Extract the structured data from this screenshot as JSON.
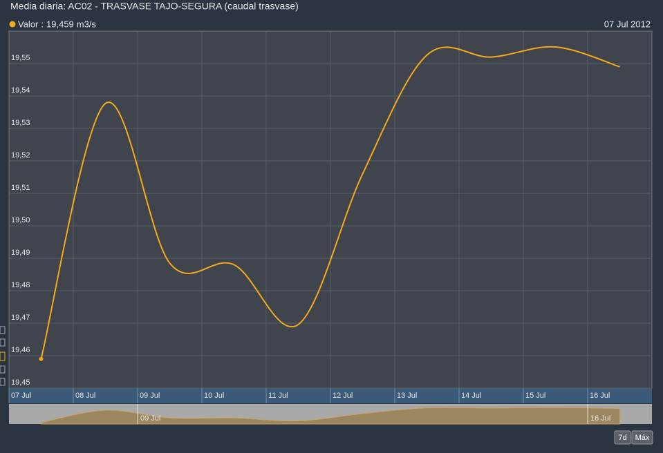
{
  "chart_data": {
    "type": "line",
    "title": "Media diaria: AC02 - TRASVASE TAJO-SEGURA (caudal trasvase)",
    "legend_separator": ":",
    "unit": "m3/s",
    "legend_date": "07 Jul 2012",
    "categories": [
      "07 Jul",
      "08 Jul",
      "09 Jul",
      "10 Jul",
      "11 Jul",
      "12 Jul",
      "13 Jul",
      "14 Jul",
      "15 Jul",
      "16 Jul"
    ],
    "series": [
      {
        "name": "Valor",
        "color": "#f5aa1c",
        "values": [
          19.459,
          19.5377,
          19.4885,
          19.488,
          19.4696,
          19.516,
          19.5526,
          19.552,
          19.5551,
          19.549
        ],
        "value_labels": [
          "19,459",
          null,
          null,
          null,
          null,
          null,
          null,
          null,
          null,
          null
        ]
      }
    ],
    "ylim": [
      19.45,
      19.56
    ],
    "yticks": [
      {
        "value": 19.45,
        "label": "19,45"
      },
      {
        "value": 19.46,
        "label": "19,46"
      },
      {
        "value": 19.47,
        "label": "19,47"
      },
      {
        "value": 19.48,
        "label": "19,48"
      },
      {
        "value": 19.49,
        "label": "19,49"
      },
      {
        "value": 19.5,
        "label": "19,50"
      },
      {
        "value": 19.51,
        "label": "19,51"
      },
      {
        "value": 19.52,
        "label": "19,52"
      },
      {
        "value": 19.53,
        "label": "19,53"
      },
      {
        "value": 19.54,
        "label": "19,54"
      },
      {
        "value": 19.55,
        "label": "19,55"
      }
    ],
    "grid": true,
    "period_buttons": [
      "7d",
      "Máx"
    ]
  }
}
